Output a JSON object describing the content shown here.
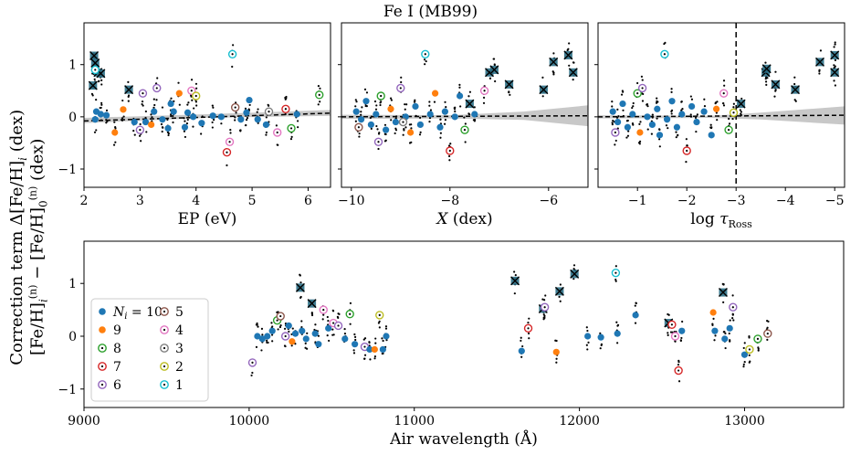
{
  "figure": {
    "title": "Fe I (MB99)",
    "ylabel_line1": "Correction term Δ[Fe/H]",
    "ylabel_line2": "[Fe/H]",
    "ylabel_sub_i": "i",
    "ylabel_sup_n": "(n)",
    "ylabel_sub_0": "0",
    "ylabel_dex": "(dex)",
    "ylabel_minus": "−"
  },
  "chart_data": [
    {
      "type": "scatter",
      "panel": "top-left",
      "xlabel": "EP  (eV)",
      "xlim": [
        2.0,
        6.4
      ],
      "ylim": [
        -1.35,
        1.8
      ],
      "xticks": [
        "2",
        "3",
        "4",
        "5",
        "6"
      ],
      "xtick_values": [
        2,
        3,
        4,
        5,
        6
      ],
      "yticks": [
        "−1",
        "0",
        "1"
      ],
      "ytick_values": [
        -1,
        0,
        1
      ],
      "fit_line": {
        "x": [
          2.0,
          6.4
        ],
        "y": [
          -0.08,
          0.07
        ]
      },
      "band": {
        "x": [
          2.0,
          4.2,
          6.4
        ],
        "upper": [
          -0.02,
          0.05,
          0.13
        ],
        "lower": [
          -0.12,
          -0.02,
          0.02
        ]
      },
      "points": [
        {
          "x": 2.18,
          "y": 1.17,
          "n": "x"
        },
        {
          "x": 2.2,
          "y": 1.03,
          "n": "x"
        },
        {
          "x": 2.16,
          "y": 0.6,
          "n": "x"
        },
        {
          "x": 2.25,
          "y": 0.85,
          "n": "x"
        },
        {
          "x": 2.3,
          "y": 0.83,
          "n": "x"
        },
        {
          "x": 2.2,
          "y": 0.9,
          "n": "1"
        },
        {
          "x": 2.22,
          "y": 0.1,
          "n": "10"
        },
        {
          "x": 2.3,
          "y": 0.05,
          "n": "10"
        },
        {
          "x": 2.4,
          "y": 0.03,
          "n": "10"
        },
        {
          "x": 2.2,
          "y": -0.05,
          "n": "10"
        },
        {
          "x": 2.55,
          "y": -0.3,
          "n": "9"
        },
        {
          "x": 2.7,
          "y": 0.14,
          "n": "9"
        },
        {
          "x": 2.8,
          "y": 0.52,
          "n": "x"
        },
        {
          "x": 2.9,
          "y": -0.1,
          "n": "10"
        },
        {
          "x": 3.0,
          "y": -0.25,
          "n": "6"
        },
        {
          "x": 3.05,
          "y": 0.45,
          "n": "6"
        },
        {
          "x": 3.1,
          "y": -0.1,
          "n": "10"
        },
        {
          "x": 3.2,
          "y": -0.15,
          "n": "9"
        },
        {
          "x": 3.25,
          "y": 0.1,
          "n": "10"
        },
        {
          "x": 3.3,
          "y": 0.55,
          "n": "6"
        },
        {
          "x": 3.4,
          "y": -0.05,
          "n": "10"
        },
        {
          "x": 3.5,
          "y": -0.22,
          "n": "10"
        },
        {
          "x": 3.6,
          "y": 0.1,
          "n": "10"
        },
        {
          "x": 3.7,
          "y": 0.45,
          "n": "9"
        },
        {
          "x": 3.8,
          "y": -0.2,
          "n": "10"
        },
        {
          "x": 3.85,
          "y": 0.08,
          "n": "10"
        },
        {
          "x": 3.92,
          "y": 0.5,
          "n": "4"
        },
        {
          "x": 4.0,
          "y": 0.4,
          "n": "2"
        },
        {
          "x": 3.95,
          "y": 0.0,
          "n": "10"
        },
        {
          "x": 4.1,
          "y": -0.12,
          "n": "10"
        },
        {
          "x": 4.3,
          "y": 0.02,
          "n": "10"
        },
        {
          "x": 4.45,
          "y": 0.0,
          "n": "10"
        },
        {
          "x": 4.55,
          "y": -0.68,
          "n": "7"
        },
        {
          "x": 4.6,
          "y": -0.48,
          "n": "4"
        },
        {
          "x": 4.65,
          "y": 1.2,
          "n": "1"
        },
        {
          "x": 4.7,
          "y": 0.18,
          "n": "5"
        },
        {
          "x": 4.8,
          "y": -0.05,
          "n": "10"
        },
        {
          "x": 4.95,
          "y": 0.32,
          "n": "10"
        },
        {
          "x": 5.1,
          "y": -0.05,
          "n": "10"
        },
        {
          "x": 5.25,
          "y": -0.15,
          "n": "10"
        },
        {
          "x": 5.3,
          "y": 0.1,
          "n": "3"
        },
        {
          "x": 5.45,
          "y": -0.3,
          "n": "4"
        },
        {
          "x": 5.6,
          "y": 0.15,
          "n": "7"
        },
        {
          "x": 5.7,
          "y": -0.22,
          "n": "8"
        },
        {
          "x": 5.8,
          "y": 0.05,
          "n": "10"
        },
        {
          "x": 6.2,
          "y": 0.42,
          "n": "8"
        },
        {
          "x": 4.9,
          "y": 0.08,
          "n": "10"
        },
        {
          "x": 3.55,
          "y": 0.25,
          "n": "10"
        }
      ]
    },
    {
      "type": "scatter",
      "panel": "top-middle",
      "xlabel": "X  (dex)",
      "xlim": [
        -10.2,
        -5.2
      ],
      "ylim": [
        -1.35,
        1.8
      ],
      "xticks": [
        "−10",
        "−8",
        "−6"
      ],
      "xtick_values": [
        -10,
        -8,
        -6
      ],
      "yticks": [],
      "ytick_values": [
        -1,
        0,
        1
      ],
      "fit_line": {
        "x": [
          -10.2,
          -5.2
        ],
        "y": [
          0.0,
          0.02
        ]
      },
      "band": {
        "x": [
          -10.2,
          -8.0,
          -6.5,
          -5.2
        ],
        "upper": [
          0.04,
          0.03,
          0.1,
          0.22
        ],
        "lower": [
          -0.04,
          -0.03,
          -0.06,
          -0.18
        ]
      },
      "points": [
        {
          "x": -9.9,
          "y": 0.1,
          "n": "10"
        },
        {
          "x": -9.8,
          "y": -0.05,
          "n": "10"
        },
        {
          "x": -9.7,
          "y": 0.3,
          "n": "10"
        },
        {
          "x": -9.6,
          "y": -0.15,
          "n": "10"
        },
        {
          "x": -9.5,
          "y": 0.05,
          "n": "10"
        },
        {
          "x": -9.4,
          "y": 0.4,
          "n": "8"
        },
        {
          "x": -9.3,
          "y": -0.25,
          "n": "10"
        },
        {
          "x": -9.2,
          "y": 0.15,
          "n": "9"
        },
        {
          "x": -9.1,
          "y": -0.1,
          "n": "10"
        },
        {
          "x": -9.0,
          "y": 0.55,
          "n": "6"
        },
        {
          "x": -8.9,
          "y": 0.0,
          "n": "10"
        },
        {
          "x": -8.8,
          "y": -0.3,
          "n": "9"
        },
        {
          "x": -8.7,
          "y": 0.2,
          "n": "10"
        },
        {
          "x": -8.6,
          "y": -0.15,
          "n": "10"
        },
        {
          "x": -8.5,
          "y": 1.2,
          "n": "1"
        },
        {
          "x": -8.4,
          "y": 0.05,
          "n": "10"
        },
        {
          "x": -8.3,
          "y": 0.45,
          "n": "9"
        },
        {
          "x": -8.2,
          "y": -0.2,
          "n": "10"
        },
        {
          "x": -8.1,
          "y": 0.1,
          "n": "10"
        },
        {
          "x": -8.0,
          "y": -0.65,
          "n": "7"
        },
        {
          "x": -7.9,
          "y": 0.0,
          "n": "10"
        },
        {
          "x": -7.8,
          "y": 0.4,
          "n": "10"
        },
        {
          "x": -7.7,
          "y": -0.25,
          "n": "8"
        },
        {
          "x": -7.6,
          "y": 0.25,
          "n": "x"
        },
        {
          "x": -7.5,
          "y": 0.05,
          "n": "10"
        },
        {
          "x": -7.3,
          "y": 0.5,
          "n": "4"
        },
        {
          "x": -7.2,
          "y": 0.85,
          "n": "x"
        },
        {
          "x": -7.1,
          "y": 0.9,
          "n": "x"
        },
        {
          "x": -6.8,
          "y": 0.62,
          "n": "x"
        },
        {
          "x": -6.1,
          "y": 0.52,
          "n": "x"
        },
        {
          "x": -5.9,
          "y": 1.05,
          "n": "x"
        },
        {
          "x": -5.6,
          "y": 1.18,
          "n": "x"
        },
        {
          "x": -5.5,
          "y": 0.85,
          "n": "x"
        },
        {
          "x": -9.85,
          "y": -0.2,
          "n": "5"
        },
        {
          "x": -9.45,
          "y": -0.48,
          "n": "6"
        },
        {
          "x": -8.95,
          "y": -0.1,
          "n": "3"
        }
      ]
    },
    {
      "type": "scatter",
      "panel": "top-right",
      "xlabel": "log τRoss",
      "xlim": [
        -0.2,
        -5.2
      ],
      "ylim": [
        -1.35,
        1.8
      ],
      "xticks": [
        "−1",
        "−2",
        "−3",
        "−4",
        "−5"
      ],
      "xtick_values": [
        -1,
        -2,
        -3,
        -4,
        -5
      ],
      "yticks": [],
      "ytick_values": [
        -1,
        0,
        1
      ],
      "vline": -3.0,
      "fit_line": {
        "x": [
          -0.2,
          -5.2
        ],
        "y": [
          0.0,
          0.03
        ]
      },
      "band": {
        "x": [
          -0.2,
          -2.5,
          -3.5,
          -5.2
        ],
        "upper": [
          0.03,
          0.02,
          0.08,
          0.2
        ],
        "lower": [
          -0.03,
          -0.02,
          -0.05,
          -0.15
        ]
      },
      "points": [
        {
          "x": -0.5,
          "y": 0.1,
          "n": "10"
        },
        {
          "x": -0.6,
          "y": -0.1,
          "n": "10"
        },
        {
          "x": -0.7,
          "y": 0.25,
          "n": "10"
        },
        {
          "x": -0.8,
          "y": -0.2,
          "n": "10"
        },
        {
          "x": -0.9,
          "y": 0.05,
          "n": "10"
        },
        {
          "x": -1.0,
          "y": 0.45,
          "n": "8"
        },
        {
          "x": -1.05,
          "y": -0.3,
          "n": "9"
        },
        {
          "x": -1.1,
          "y": 0.55,
          "n": "6"
        },
        {
          "x": -1.2,
          "y": 0.0,
          "n": "10"
        },
        {
          "x": -1.3,
          "y": -0.15,
          "n": "10"
        },
        {
          "x": -1.4,
          "y": 0.15,
          "n": "10"
        },
        {
          "x": -1.55,
          "y": 1.2,
          "n": "1"
        },
        {
          "x": -1.6,
          "y": -0.05,
          "n": "10"
        },
        {
          "x": -1.7,
          "y": 0.3,
          "n": "10"
        },
        {
          "x": -1.8,
          "y": -0.2,
          "n": "10"
        },
        {
          "x": -1.9,
          "y": 0.05,
          "n": "10"
        },
        {
          "x": -2.0,
          "y": -0.65,
          "n": "7"
        },
        {
          "x": -2.1,
          "y": 0.2,
          "n": "10"
        },
        {
          "x": -2.2,
          "y": -0.1,
          "n": "10"
        },
        {
          "x": -2.35,
          "y": 0.1,
          "n": "10"
        },
        {
          "x": -2.5,
          "y": -0.35,
          "n": "10"
        },
        {
          "x": -2.6,
          "y": 0.15,
          "n": "9"
        },
        {
          "x": -2.75,
          "y": 0.45,
          "n": "4"
        },
        {
          "x": -2.85,
          "y": -0.25,
          "n": "8"
        },
        {
          "x": -3.1,
          "y": 0.25,
          "n": "x"
        },
        {
          "x": -3.6,
          "y": 0.85,
          "n": "x"
        },
        {
          "x": -3.62,
          "y": 0.92,
          "n": "x"
        },
        {
          "x": -3.8,
          "y": 0.62,
          "n": "x"
        },
        {
          "x": -4.2,
          "y": 0.52,
          "n": "x"
        },
        {
          "x": -4.7,
          "y": 1.05,
          "n": "x"
        },
        {
          "x": -5.0,
          "y": 1.18,
          "n": "x"
        },
        {
          "x": -5.0,
          "y": 0.85,
          "n": "x"
        },
        {
          "x": -0.55,
          "y": -0.3,
          "n": "6"
        },
        {
          "x": -1.45,
          "y": -0.35,
          "n": "10"
        },
        {
          "x": -2.95,
          "y": 0.08,
          "n": "2"
        }
      ]
    },
    {
      "type": "scatter",
      "panel": "bottom",
      "xlabel": "Air wavelength  (Å)",
      "xlim": [
        9000,
        13600
      ],
      "ylim": [
        -1.35,
        1.8
      ],
      "xticks": [
        "9000",
        "10000",
        "11000",
        "12000",
        "13000"
      ],
      "xtick_values": [
        9000,
        10000,
        11000,
        12000,
        13000
      ],
      "yticks": [
        "−1",
        "0",
        "1"
      ],
      "ytick_values": [
        -1,
        0,
        1
      ],
      "points": [
        {
          "x": 10020,
          "y": -0.5,
          "n": "6"
        },
        {
          "x": 10050,
          "y": 0.0,
          "n": "10"
        },
        {
          "x": 10080,
          "y": -0.05,
          "n": "10"
        },
        {
          "x": 10110,
          "y": 0.0,
          "n": "10"
        },
        {
          "x": 10140,
          "y": 0.1,
          "n": "10"
        },
        {
          "x": 10170,
          "y": 0.3,
          "n": "8"
        },
        {
          "x": 10190,
          "y": 0.38,
          "n": "5"
        },
        {
          "x": 10220,
          "y": 0.0,
          "n": "6"
        },
        {
          "x": 10240,
          "y": 0.2,
          "n": "10"
        },
        {
          "x": 10260,
          "y": -0.1,
          "n": "9"
        },
        {
          "x": 10280,
          "y": 0.05,
          "n": "10"
        },
        {
          "x": 10310,
          "y": 0.92,
          "n": "x"
        },
        {
          "x": 10320,
          "y": 0.1,
          "n": "10"
        },
        {
          "x": 10345,
          "y": -0.05,
          "n": "10"
        },
        {
          "x": 10380,
          "y": 0.62,
          "n": "x"
        },
        {
          "x": 10400,
          "y": 0.05,
          "n": "10"
        },
        {
          "x": 10420,
          "y": -0.15,
          "n": "10"
        },
        {
          "x": 10450,
          "y": 0.5,
          "n": "4"
        },
        {
          "x": 10480,
          "y": 0.15,
          "n": "10"
        },
        {
          "x": 10510,
          "y": 0.25,
          "n": "4"
        },
        {
          "x": 10540,
          "y": 0.2,
          "n": "6"
        },
        {
          "x": 10580,
          "y": -0.05,
          "n": "10"
        },
        {
          "x": 10610,
          "y": 0.42,
          "n": "8"
        },
        {
          "x": 10640,
          "y": -0.15,
          "n": "10"
        },
        {
          "x": 10700,
          "y": -0.2,
          "n": "6"
        },
        {
          "x": 10730,
          "y": -0.25,
          "n": "10"
        },
        {
          "x": 10760,
          "y": -0.25,
          "n": "9"
        },
        {
          "x": 10790,
          "y": 0.4,
          "n": "2"
        },
        {
          "x": 10810,
          "y": -0.25,
          "n": "10"
        },
        {
          "x": 10830,
          "y": 0.0,
          "n": "10"
        },
        {
          "x": 11610,
          "y": 1.05,
          "n": "x"
        },
        {
          "x": 11650,
          "y": -0.28,
          "n": "10"
        },
        {
          "x": 11690,
          "y": 0.15,
          "n": "7"
        },
        {
          "x": 11780,
          "y": 0.52,
          "n": "x"
        },
        {
          "x": 11790,
          "y": 0.55,
          "n": "6"
        },
        {
          "x": 11860,
          "y": -0.3,
          "n": "9"
        },
        {
          "x": 11880,
          "y": 0.85,
          "n": "x"
        },
        {
          "x": 11970,
          "y": 1.18,
          "n": "x"
        },
        {
          "x": 12050,
          "y": 0.0,
          "n": "10"
        },
        {
          "x": 12130,
          "y": -0.02,
          "n": "10"
        },
        {
          "x": 12230,
          "y": 0.05,
          "n": "10"
        },
        {
          "x": 12220,
          "y": 1.2,
          "n": "1"
        },
        {
          "x": 12340,
          "y": 0.4,
          "n": "10"
        },
        {
          "x": 12540,
          "y": 0.25,
          "n": "x"
        },
        {
          "x": 12560,
          "y": 0.22,
          "n": "7"
        },
        {
          "x": 12580,
          "y": 0.0,
          "n": "4"
        },
        {
          "x": 12600,
          "y": -0.65,
          "n": "7"
        },
        {
          "x": 12620,
          "y": 0.1,
          "n": "10"
        },
        {
          "x": 12810,
          "y": 0.45,
          "n": "9"
        },
        {
          "x": 12820,
          "y": 0.1,
          "n": "10"
        },
        {
          "x": 12870,
          "y": 0.83,
          "n": "x"
        },
        {
          "x": 12880,
          "y": -0.05,
          "n": "10"
        },
        {
          "x": 12910,
          "y": 0.15,
          "n": "10"
        },
        {
          "x": 12930,
          "y": 0.55,
          "n": "6"
        },
        {
          "x": 13000,
          "y": -0.35,
          "n": "10"
        },
        {
          "x": 13030,
          "y": -0.25,
          "n": "2"
        },
        {
          "x": 13080,
          "y": -0.05,
          "n": "8"
        },
        {
          "x": 13140,
          "y": 0.05,
          "n": "5"
        }
      ]
    }
  ],
  "legend": {
    "placement": "lower-left of bottom panel",
    "entries": [
      {
        "key": "10",
        "label_prefix": "N",
        "label_sub": "i",
        "label_suffix": " = 10",
        "color": "#1f77b4",
        "filled": true
      },
      {
        "key": "9",
        "label": "9",
        "color": "#ff7f0e",
        "filled": true
      },
      {
        "key": "8",
        "label": "8",
        "color": "#2ca02c",
        "filled": false
      },
      {
        "key": "7",
        "label": "7",
        "color": "#d62728",
        "filled": false
      },
      {
        "key": "6",
        "label": "6",
        "color": "#9467bd",
        "filled": false
      },
      {
        "key": "5",
        "label": "5",
        "color": "#8c564b",
        "filled": false
      },
      {
        "key": "4",
        "label": "4",
        "color": "#e377c2",
        "filled": false
      },
      {
        "key": "3",
        "label": "3",
        "color": "#7f7f7f",
        "filled": false
      },
      {
        "key": "2",
        "label": "2",
        "color": "#bcbd22",
        "filled": false
      },
      {
        "key": "1",
        "label": "1",
        "color": "#17becf",
        "filled": false
      }
    ]
  },
  "colors": {
    "x_marker_fill": "#2b6f86",
    "band": "#c8c8c8",
    "fit_line": "#000000"
  }
}
